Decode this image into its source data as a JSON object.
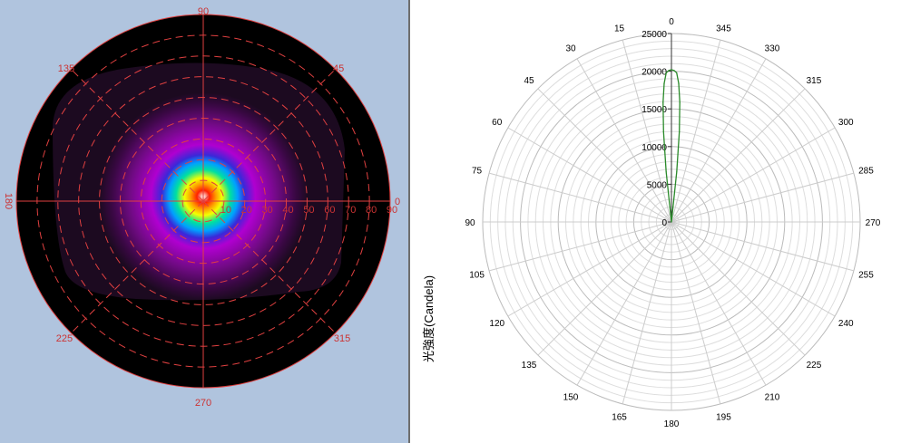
{
  "colors": {
    "left_background": "#b0c4de",
    "grid_red": "#e04040",
    "label_red": "#cc3333",
    "curve_green": "#2a8a2a",
    "grid_gray": "#cccccc"
  },
  "chart_data": [
    {
      "type": "heatmap",
      "projection": "polar",
      "angle_labels": [
        {
          "angle": 0,
          "label": "0"
        },
        {
          "angle": 45,
          "label": "45"
        },
        {
          "angle": 90,
          "label": "90"
        },
        {
          "angle": 135,
          "label": "135"
        },
        {
          "angle": 180,
          "label": "180"
        },
        {
          "angle": 225,
          "label": "225"
        },
        {
          "angle": 270,
          "label": "270"
        },
        {
          "angle": 315,
          "label": "315"
        }
      ],
      "radial_ticks": [
        10,
        20,
        30,
        40,
        50,
        60,
        70,
        80,
        90
      ],
      "radial_max": 90
    },
    {
      "type": "line",
      "projection": "polar",
      "ylabel": "光強度(Candela)",
      "r_ticks": [
        0,
        5000,
        10000,
        15000,
        20000,
        25000
      ],
      "r_max": 25000,
      "angle_labels": [
        "0",
        "15",
        "30",
        "45",
        "60",
        "75",
        "90",
        "105",
        "120",
        "135",
        "150",
        "165",
        "180",
        "195",
        "210",
        "225",
        "240",
        "255",
        "270",
        "285",
        "300",
        "315",
        "330",
        "345"
      ],
      "series": [
        {
          "angles": [
            -7,
            -6,
            -5,
            -4,
            -3,
            -2,
            -1,
            0,
            1,
            2,
            3,
            4,
            5,
            6,
            7
          ],
          "values": [
            0,
            6700,
            12000,
            15900,
            18400,
            19800,
            20100,
            20200,
            20100,
            19800,
            18400,
            15900,
            12000,
            6700,
            0
          ]
        }
      ]
    }
  ]
}
